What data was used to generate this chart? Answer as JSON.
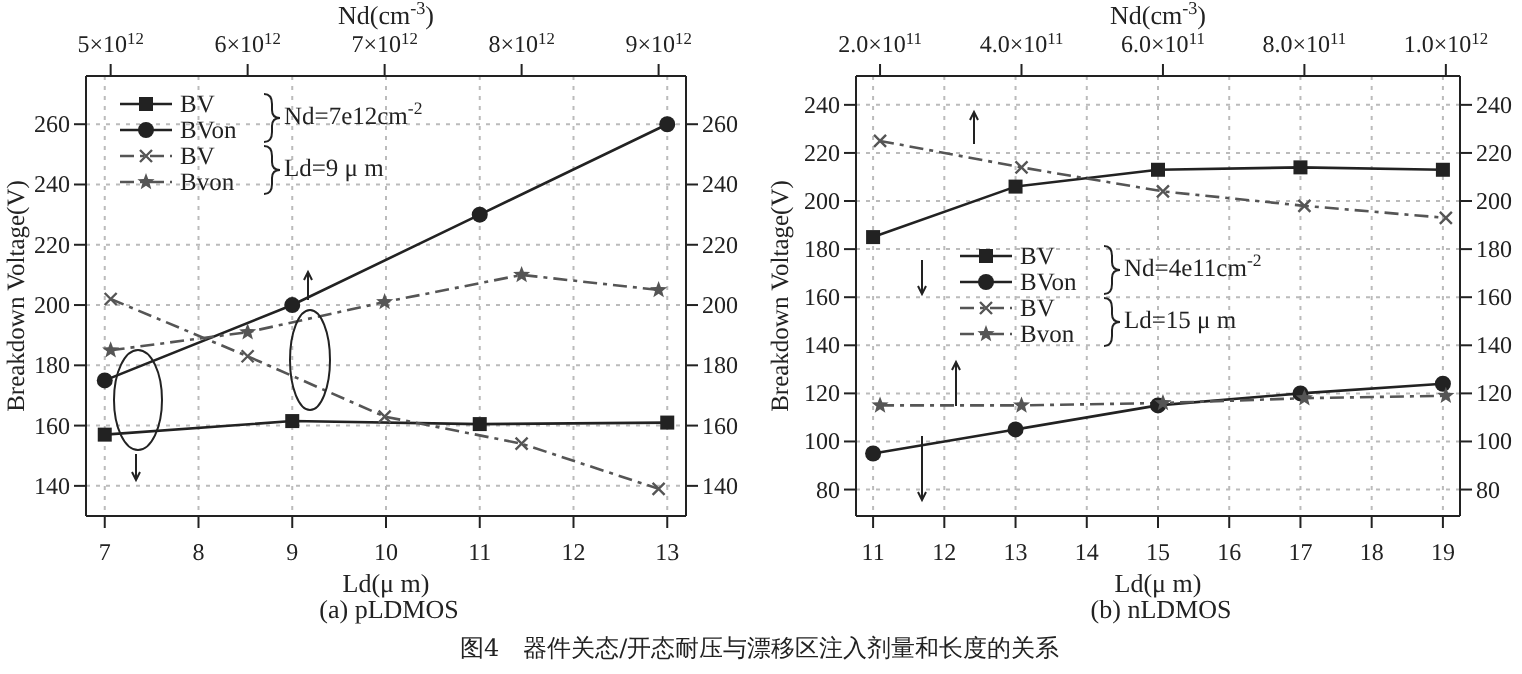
{
  "chart_data": [
    {
      "type": "line",
      "title": "(a)  pLDMOS",
      "xlabel": "Ld(μ m)",
      "x2label": "Nd(cm$^{-3}$)",
      "ylabel": "Breakdown Voltage(V)",
      "xlim": [
        6.8,
        13.2
      ],
      "xticks": [
        7,
        8,
        9,
        10,
        11,
        12,
        13
      ],
      "x2lim": [
        4820000000000.0,
        9200000000000.0
      ],
      "x2ticks": [
        {
          "value": 5000000000000.0,
          "label": "5×10$^{12}$"
        },
        {
          "value": 6000000000000.0,
          "label": "6×10$^{12}$"
        },
        {
          "value": 7000000000000.0,
          "label": "7×10$^{12}$"
        },
        {
          "value": 8000000000000.0,
          "label": "8×10$^{12}$"
        },
        {
          "value": 9000000000000.0,
          "label": "9×10$^{12}$"
        }
      ],
      "ylim": [
        130,
        276
      ],
      "yticks": [
        140,
        160,
        180,
        200,
        220,
        240,
        260
      ],
      "y2lim": [
        130,
        276
      ],
      "y2ticks": [
        140,
        160,
        180,
        200,
        220,
        240,
        260
      ],
      "grid": true,
      "legend": "top left",
      "annotations": [
        "Nd=7e12cm$^{-2}$",
        "Ld=9 μ m",
        "图4　器件关态/开态耐压与漂移区注入剂量和长度的关系"
      ],
      "series": [
        {
          "name": "BV",
          "color": "#222222",
          "marker": "square",
          "line_style": "solid",
          "x": [
            7,
            9,
            11,
            13
          ],
          "values": [
            157,
            161.5,
            160.5,
            161
          ]
        },
        {
          "name": "BVon",
          "color": "#222222",
          "marker": "circle",
          "line_style": "solid",
          "x": [
            7,
            9,
            11,
            13
          ],
          "values": [
            175,
            200,
            230,
            260
          ]
        },
        {
          "name": "BV",
          "color": "#555555",
          "marker": "cross",
          "line_style": "dashed",
          "axis": "x2",
          "x": [
            5000000000000.0,
            6000000000000.0,
            7000000000000.0,
            8000000000000.0,
            9000000000000.0
          ],
          "values": [
            202,
            183,
            163,
            154,
            139
          ]
        },
        {
          "name": "Bvon",
          "color": "#555555",
          "marker": "star",
          "line_style": "dashed",
          "axis": "x2",
          "x": [
            5000000000000.0,
            6000000000000.0,
            7000000000000.0,
            8000000000000.0,
            9000000000000.0
          ],
          "values": [
            185,
            191,
            201,
            210,
            205
          ]
        }
      ]
    },
    {
      "type": "line",
      "title": "(b)  nLDMOS",
      "xlabel": "Ld(μ m)",
      "x2label": "Nd(cm$^{-3}$)",
      "ylabel": "Breakdown Voltage(V)",
      "xlim": [
        10.76,
        19.24
      ],
      "xticks": [
        11,
        12,
        13,
        14,
        15,
        16,
        17,
        18,
        19
      ],
      "x2lim": [
        166000000000.0,
        1020000000000.0
      ],
      "x2ticks": [
        {
          "value": 200000000000.0,
          "label": "2.0×10$^{11}$"
        },
        {
          "value": 400000000000.0,
          "label": "4.0×10$^{11}$"
        },
        {
          "value": 600000000000.0,
          "label": "6.0×10$^{11}$"
        },
        {
          "value": 800000000000.0,
          "label": "8.0×10$^{11}$"
        },
        {
          "value": 1000000000000.0,
          "label": "1.0×10$^{12}$"
        }
      ],
      "ylim": [
        69,
        252
      ],
      "yticks": [
        80,
        100,
        120,
        140,
        160,
        180,
        200,
        220,
        240
      ],
      "y2lim": [
        69,
        252
      ],
      "y2ticks": [
        80,
        100,
        120,
        140,
        160,
        180,
        200,
        220,
        240
      ],
      "grid": true,
      "legend": "left",
      "annotations": [
        "Nd=4e11cm$^{-2}$",
        "Ld=15 μ m"
      ],
      "series": [
        {
          "name": "BV",
          "color": "#222222",
          "marker": "square",
          "line_style": "solid",
          "x": [
            11,
            13,
            15,
            17,
            19
          ],
          "values": [
            185,
            206,
            213,
            214,
            213
          ]
        },
        {
          "name": "BVon",
          "color": "#222222",
          "marker": "circle",
          "line_style": "solid",
          "x": [
            11,
            13,
            15,
            17,
            19
          ],
          "values": [
            95,
            105,
            115,
            120,
            124
          ]
        },
        {
          "name": "BV",
          "color": "#555555",
          "marker": "cross",
          "line_style": "dashed",
          "axis": "x2",
          "x": [
            200000000000.0,
            400000000000.0,
            600000000000.0,
            800000000000.0,
            1000000000000.0
          ],
          "values": [
            225,
            214,
            204,
            198,
            193
          ]
        },
        {
          "name": "Bvon",
          "color": "#555555",
          "marker": "star",
          "line_style": "dashed",
          "axis": "x2",
          "x": [
            200000000000.0,
            400000000000.0,
            600000000000.0,
            800000000000.0,
            1000000000000.0
          ],
          "values": [
            115,
            115,
            116,
            118,
            119
          ]
        }
      ]
    }
  ]
}
